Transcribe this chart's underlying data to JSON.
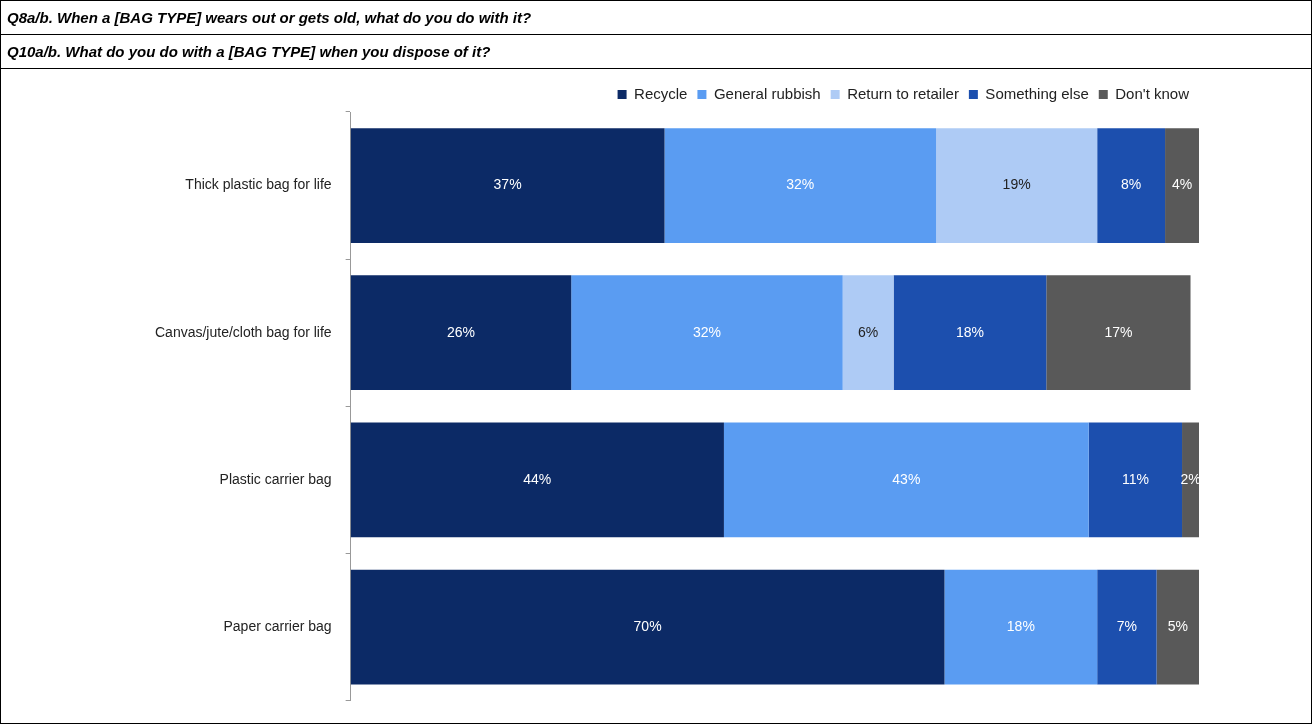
{
  "chart_data": {
    "type": "bar",
    "orientation": "horizontal",
    "stacked": true,
    "title": "Q8a/b. When a [BAG TYPE] wears out or gets old, what do you do with it?",
    "subtitle": "Q10a/b. What do you do with a [BAG TYPE] when you dispose of it?",
    "categories": [
      "Thick plastic bag for life",
      "Canvas/jute/cloth bag for life",
      "Plastic carrier bag",
      "Paper carrier bag"
    ],
    "series": [
      {
        "name": "Recycle",
        "color": "#0c2a66",
        "values": [
          37,
          26,
          44,
          70
        ],
        "value_labels": [
          "37%",
          "26%",
          "44%",
          "70%"
        ]
      },
      {
        "name": "General rubbish",
        "color": "#5a9cf2",
        "values": [
          32,
          32,
          43,
          18
        ],
        "value_labels": [
          "32%",
          "32%",
          "43%",
          "18%"
        ]
      },
      {
        "name": "Return to retailer",
        "color": "#aecbf5",
        "values": [
          19,
          6,
          null,
          null
        ],
        "value_labels": [
          "19%",
          "6%",
          null,
          null
        ]
      },
      {
        "name": "Something else",
        "color": "#1c4fae",
        "values": [
          8,
          18,
          11,
          7
        ],
        "value_labels": [
          "8%",
          "18%",
          "11%",
          "7%"
        ]
      },
      {
        "name": "Don't know",
        "color": "#595959",
        "values": [
          4,
          17,
          2,
          5
        ],
        "value_labels": [
          "4%",
          "17%",
          "2%",
          "5%"
        ]
      }
    ],
    "tick_labels": "y",
    "legend": "top right"
  }
}
